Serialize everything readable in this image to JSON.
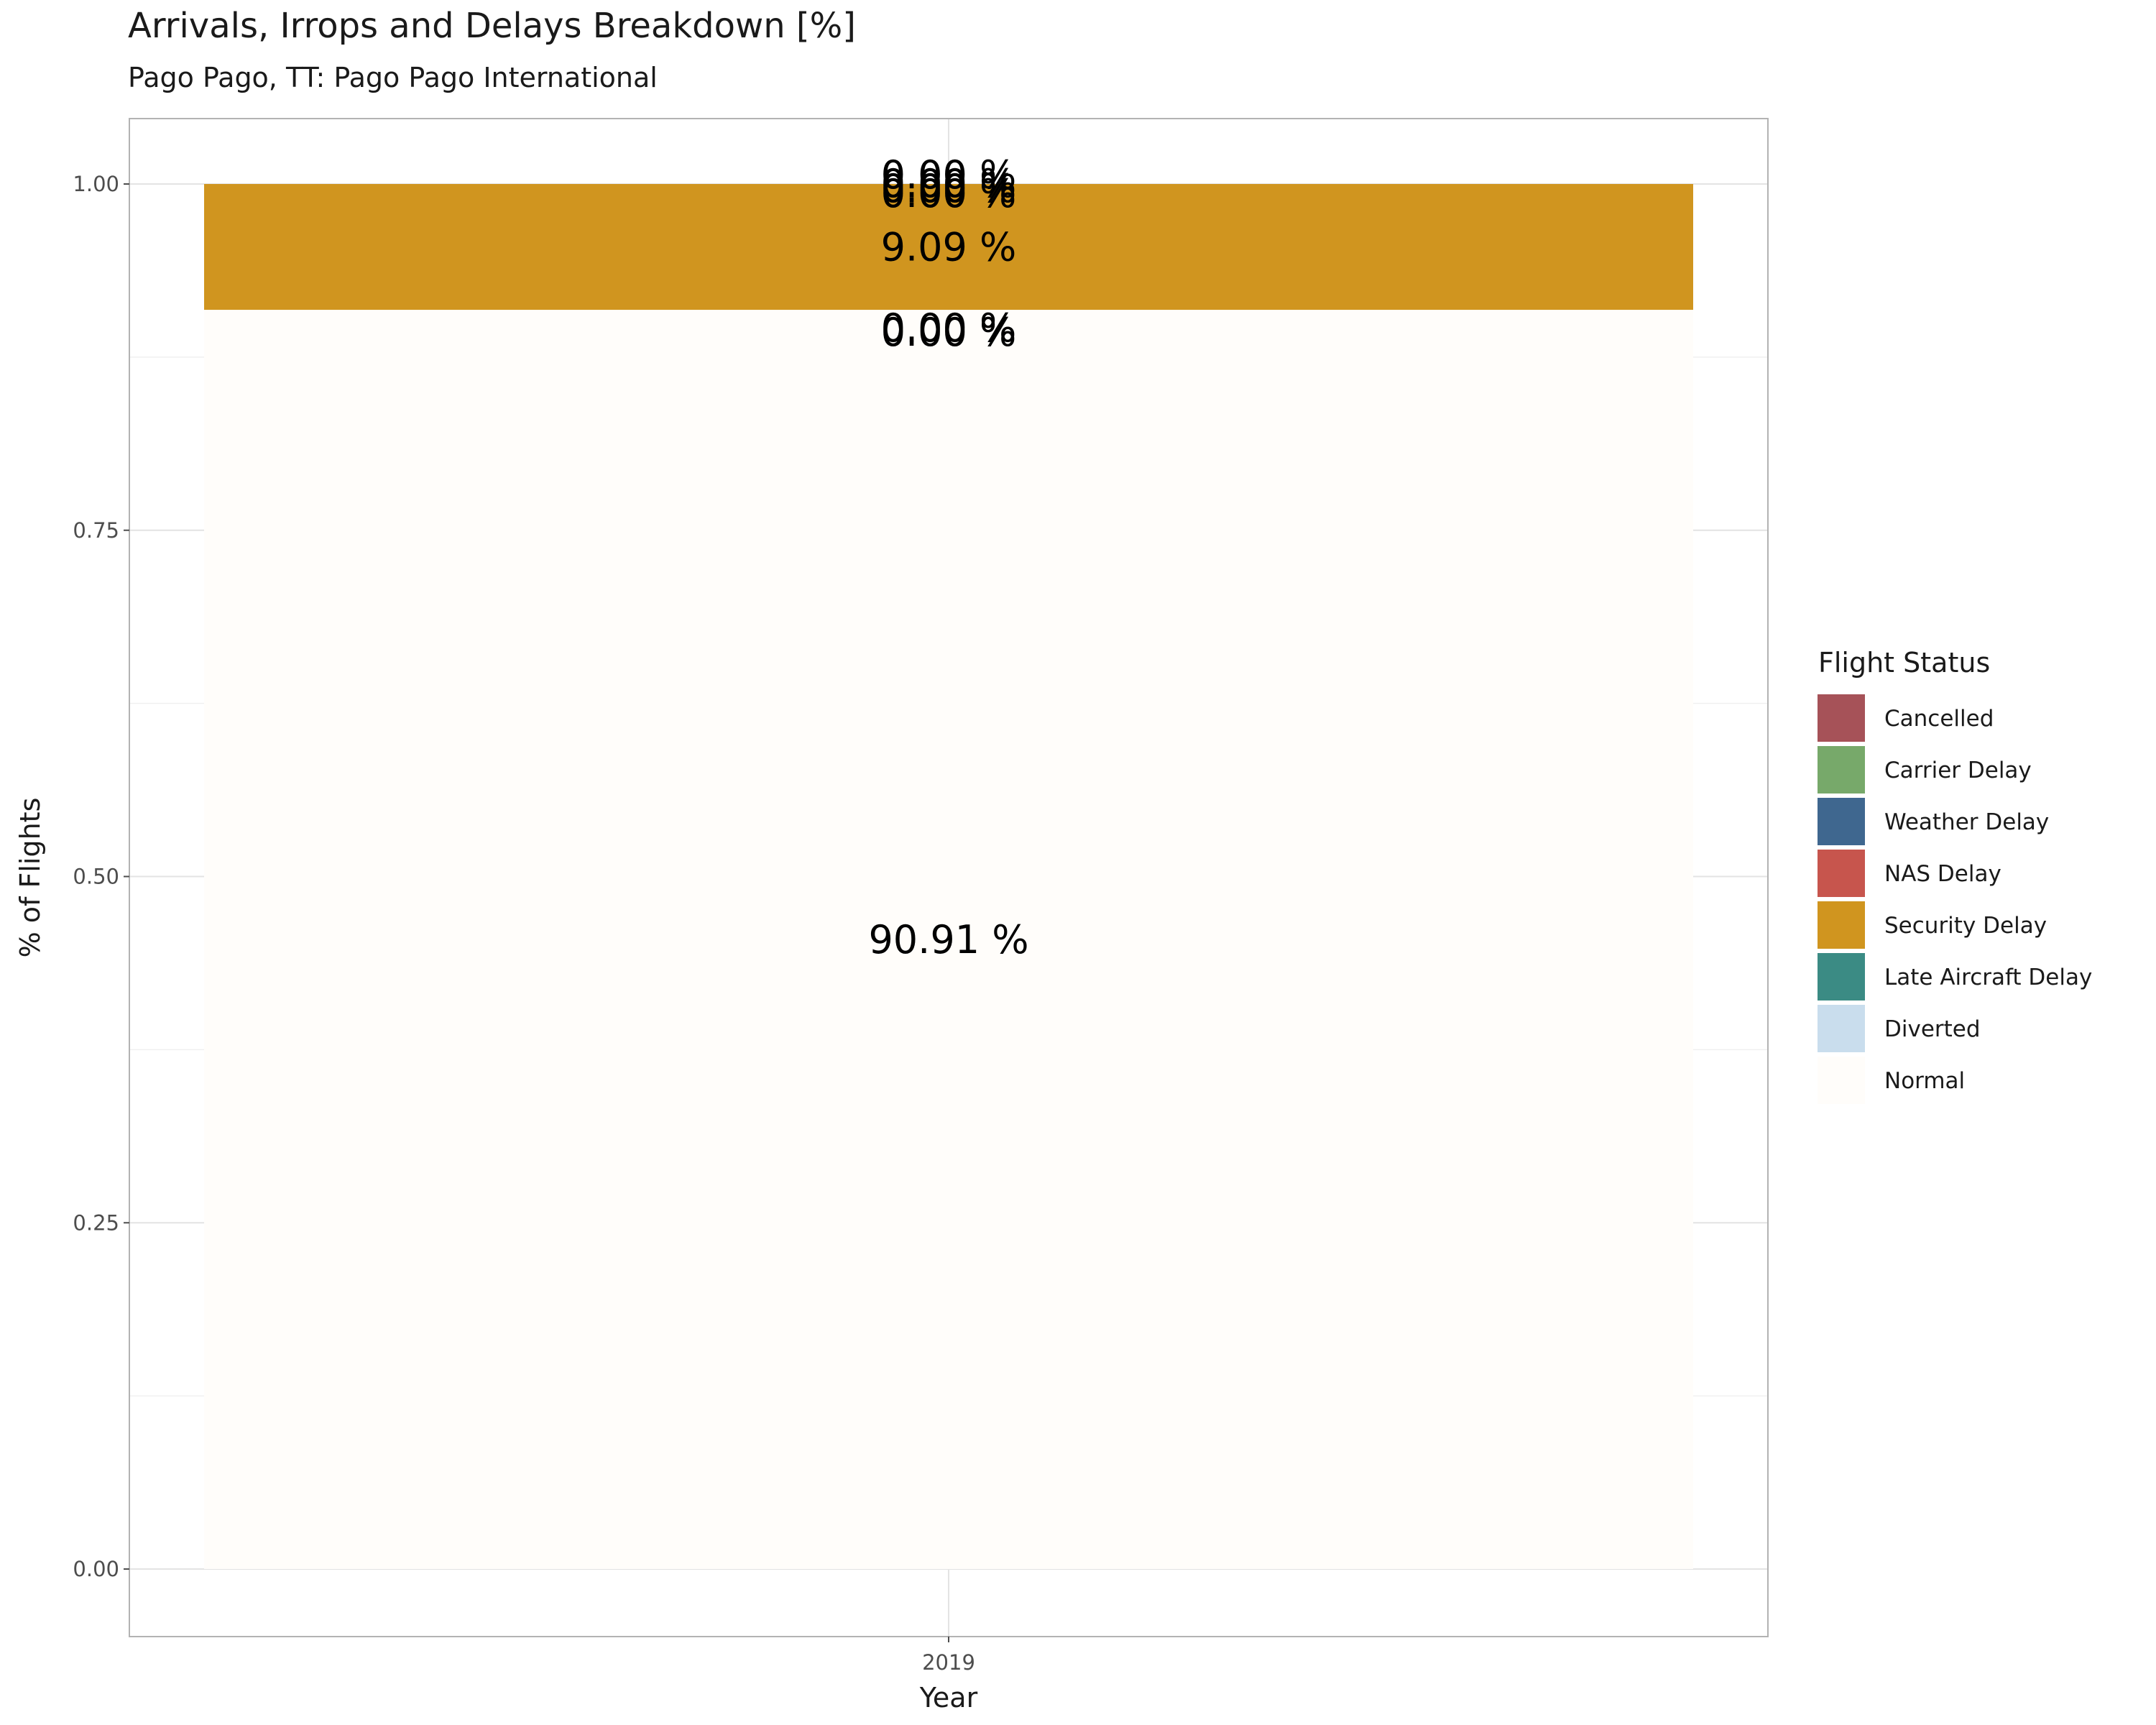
{
  "title": "Arrivals, Irrops and Delays Breakdown [%]",
  "subtitle": "Pago Pago, TT: Pago Pago International",
  "chart_data": {
    "type": "bar",
    "stacked": true,
    "title": "Arrivals, Irrops and Delays Breakdown [%]",
    "subtitle": "Pago Pago, TT: Pago Pago International",
    "xlabel": "Year",
    "ylabel": "% of Flights",
    "categories": [
      "2019"
    ],
    "ylim": [
      0,
      1
    ],
    "y_ticks": [
      "0.00",
      "0.25",
      "0.50",
      "0.75",
      "1.00"
    ],
    "grid": true,
    "legend": {
      "title": "Flight Status",
      "position": "right"
    },
    "series": [
      {
        "name": "Cancelled",
        "values": [
          0.0
        ],
        "color": "#a65258",
        "label": "0.00 %"
      },
      {
        "name": "Carrier Delay",
        "values": [
          0.0
        ],
        "color": "#77a96a",
        "label": "0.00 %"
      },
      {
        "name": "Weather Delay",
        "values": [
          0.0
        ],
        "color": "#3f678f",
        "label": "0.00 %"
      },
      {
        "name": "NAS Delay",
        "values": [
          0.0
        ],
        "color": "#c7554d",
        "label": "0.00 %"
      },
      {
        "name": "Security Delay",
        "values": [
          0.0909
        ],
        "color": "#d0951f",
        "label": "9.09 %"
      },
      {
        "name": "Late Aircraft Delay",
        "values": [
          0.0
        ],
        "color": "#3b8b84",
        "label": "0.00 %"
      },
      {
        "name": "Diverted",
        "values": [
          0.0
        ],
        "color": "#c9dded",
        "label": "0.00 %"
      },
      {
        "name": "Normal",
        "values": [
          0.9091
        ],
        "color": "#fffdfa",
        "label": "90.91 %"
      }
    ]
  }
}
